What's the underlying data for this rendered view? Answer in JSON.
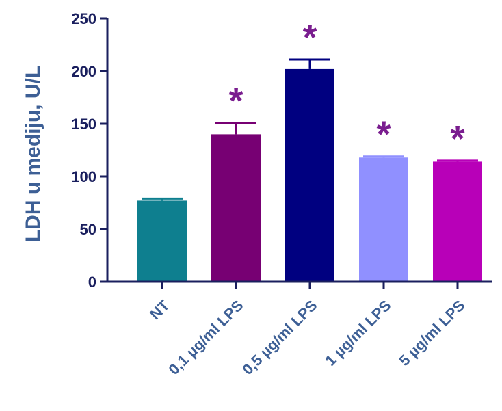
{
  "chart_data": {
    "type": "bar",
    "title": "",
    "xlabel": "",
    "ylabel": "LDH u mediju, U/L",
    "ylim": [
      0,
      250
    ],
    "yticks": [
      "0",
      "50",
      "100",
      "150",
      "200",
      "250"
    ],
    "grid": false,
    "categories": [
      "NT",
      "0,1 µg/ml LPS",
      "0,5 µg/ml LPS",
      "1 µg/ml LPS",
      "5 µg/ml LPS"
    ],
    "series": [
      {
        "values": [
          77,
          140,
          202,
          118,
          114
        ],
        "errors": [
          2,
          11,
          9,
          1,
          1
        ],
        "colors": [
          "#0e7f8f",
          "#770073",
          "#000080",
          "#9090ff",
          "#b800b8"
        ]
      }
    ],
    "annotations": [
      "",
      "*",
      "*",
      "*",
      "*"
    ],
    "colors": {
      "axis": "#1a1f5e",
      "label": "#3d5f95",
      "annotation": "#7a1d8f"
    }
  }
}
